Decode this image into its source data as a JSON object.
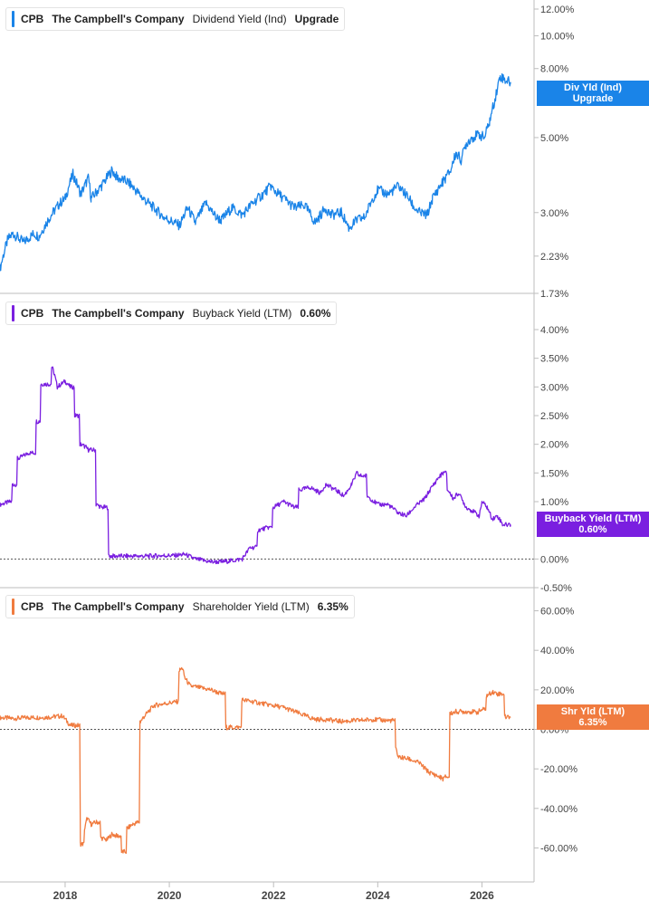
{
  "colors": {
    "dividend": "#1a84e8",
    "buyback": "#7a1fe0",
    "shareholder": "#f07b3f",
    "axis": "#bdbdbd",
    "text": "#444444"
  },
  "panels": [
    {
      "ticker": "CPB",
      "company": "The Campbell's Company",
      "metric": "Dividend Yield (Ind)",
      "value": "Upgrade",
      "tag_line1": "Div Yld (Ind)",
      "tag_line2": "Upgrade"
    },
    {
      "ticker": "CPB",
      "company": "The Campbell's Company",
      "metric": "Buyback Yield (LTM)",
      "value": "0.60%",
      "tag_line1": "Buyback Yield (LTM)",
      "tag_line2": "0.60%"
    },
    {
      "ticker": "CPB",
      "company": "The Campbell's Company",
      "metric": "Shareholder Yield (LTM)",
      "value": "6.35%",
      "tag_line1": "Shr Yld (LTM)",
      "tag_line2": "6.35%"
    }
  ],
  "chart_data": [
    {
      "type": "line",
      "scale": "log",
      "ylim": [
        1.73,
        12.0
      ],
      "ticks": [
        "12.00%",
        "10.00%",
        "8.00%",
        "5.00%",
        "3.00%",
        "2.23%",
        "1.73%"
      ],
      "series": [
        {
          "name": "Dividend Yield (Ind)",
          "x": [
            2016.75,
            2016.9,
            2017.0,
            2017.2,
            2017.4,
            2017.5,
            2017.7,
            2017.9,
            2018.0,
            2018.15,
            2018.3,
            2018.45,
            2018.5,
            2018.7,
            2018.9,
            2019.0,
            2019.2,
            2019.5,
            2019.7,
            2019.9,
            2020.0,
            2020.2,
            2020.35,
            2020.5,
            2020.7,
            2020.9,
            2021.0,
            2021.2,
            2021.4,
            2021.6,
            2021.8,
            2021.95,
            2022.0,
            2022.2,
            2022.4,
            2022.6,
            2022.8,
            2022.9,
            2023.0,
            2023.1,
            2023.3,
            2023.45,
            2023.6,
            2023.75,
            2023.9,
            2024.0,
            2024.2,
            2024.4,
            2024.6,
            2024.7,
            2024.8,
            2024.95,
            2025.05,
            2025.2,
            2025.4,
            2025.5,
            2025.6,
            2025.7,
            2025.8,
            2025.95,
            2026.05,
            2026.15,
            2026.25,
            2026.35,
            2026.45,
            2026.55
          ],
          "y": [
            2.05,
            2.5,
            2.6,
            2.45,
            2.6,
            2.55,
            2.9,
            3.2,
            3.3,
            3.9,
            3.4,
            3.8,
            3.3,
            3.6,
            4.0,
            3.8,
            3.7,
            3.3,
            3.1,
            2.9,
            2.85,
            2.75,
            3.1,
            2.8,
            3.2,
            2.9,
            2.85,
            3.1,
            2.95,
            3.2,
            3.4,
            3.6,
            3.5,
            3.3,
            3.1,
            3.15,
            2.8,
            2.95,
            3.1,
            2.95,
            3.0,
            2.7,
            2.85,
            2.9,
            3.3,
            3.5,
            3.4,
            3.6,
            3.3,
            3.1,
            3.0,
            2.95,
            3.3,
            3.6,
            4.0,
            4.5,
            4.3,
            4.8,
            5.0,
            5.1,
            5.0,
            5.6,
            6.5,
            7.6,
            7.4,
            7.3
          ]
        }
      ]
    },
    {
      "type": "line",
      "ylim": [
        -0.5,
        4.0
      ],
      "ticks": [
        "4.00%",
        "3.50%",
        "3.00%",
        "2.50%",
        "2.00%",
        "1.50%",
        "1.00%",
        "0.00%",
        "-0.50%"
      ],
      "series": [
        {
          "name": "Buyback Yield (LTM)",
          "x": [
            2016.75,
            2016.95,
            2017.0,
            2017.1,
            2017.3,
            2017.45,
            2017.55,
            2017.75,
            2017.8,
            2017.85,
            2018.0,
            2018.1,
            2018.2,
            2018.3,
            2018.4,
            2018.45,
            2018.6,
            2018.7,
            2018.75,
            2018.85,
            2018.95,
            2019.2,
            2019.6,
            2019.9,
            2020.1,
            2020.3,
            2020.5,
            2020.8,
            2021.0,
            2021.2,
            2021.4,
            2021.55,
            2021.7,
            2021.9,
            2022.0,
            2022.2,
            2022.4,
            2022.5,
            2022.7,
            2022.9,
            2023.0,
            2023.2,
            2023.35,
            2023.5,
            2023.6,
            2023.65,
            2023.8,
            2024.0,
            2024.2,
            2024.4,
            2024.55,
            2024.7,
            2024.9,
            2025.0,
            2025.15,
            2025.25,
            2025.35,
            2025.45,
            2025.55,
            2025.7,
            2025.8,
            2025.95,
            2026.0,
            2026.1,
            2026.2,
            2026.3,
            2026.4,
            2026.55
          ],
          "y": [
            0.95,
            1.0,
            1.3,
            1.75,
            1.85,
            2.4,
            3.05,
            3.35,
            3.2,
            3.0,
            3.1,
            3.0,
            2.5,
            2.0,
            1.95,
            1.9,
            0.95,
            0.9,
            0.9,
            0.05,
            0.05,
            0.05,
            0.05,
            0.06,
            0.06,
            0.08,
            0.0,
            -0.05,
            -0.05,
            -0.03,
            0.0,
            0.2,
            0.5,
            0.55,
            0.9,
            1.0,
            0.9,
            1.2,
            1.25,
            1.15,
            1.3,
            1.2,
            1.1,
            1.3,
            1.5,
            1.45,
            1.1,
            0.95,
            0.95,
            0.8,
            0.75,
            0.9,
            1.05,
            1.2,
            1.4,
            1.5,
            1.2,
            1.05,
            1.15,
            0.9,
            0.85,
            0.75,
            1.0,
            0.9,
            0.7,
            0.75,
            0.6,
            0.6
          ]
        }
      ]
    },
    {
      "type": "line",
      "ylim": [
        -63,
        63
      ],
      "ticks": [
        "60.00%",
        "40.00%",
        "20.00%",
        "0.00%",
        "-20.00%",
        "-40.00%",
        "-60.00%"
      ],
      "series": [
        {
          "name": "Shareholder Yield (LTM)",
          "x": [
            2016.75,
            2017.0,
            2017.3,
            2017.5,
            2017.7,
            2017.95,
            2018.1,
            2018.3,
            2018.38,
            2018.42,
            2018.5,
            2018.6,
            2018.7,
            2018.8,
            2018.9,
            2019.0,
            2019.1,
            2019.2,
            2019.3,
            2019.4,
            2019.45,
            2019.5,
            2019.7,
            2019.9,
            2020.15,
            2020.2,
            2020.25,
            2020.3,
            2020.4,
            2020.6,
            2020.8,
            2021.0,
            2021.1,
            2021.2,
            2021.4,
            2021.6,
            2021.8,
            2022.0,
            2022.2,
            2022.4,
            2022.6,
            2022.8,
            2023.0,
            2023.3,
            2023.6,
            2023.9,
            2024.2,
            2024.35,
            2024.4,
            2024.6,
            2024.8,
            2024.95,
            2025.0,
            2025.1,
            2025.25,
            2025.3,
            2025.4,
            2025.5,
            2025.6,
            2025.7,
            2025.8,
            2025.9,
            2026.0,
            2026.1,
            2026.2,
            2026.3,
            2026.4,
            2026.45,
            2026.55
          ],
          "y": [
            6,
            5.5,
            6,
            6,
            6.2,
            6.8,
            2,
            -58,
            -50,
            -45,
            -48,
            -47,
            -55,
            -56,
            -53,
            -54,
            -62,
            -50,
            -48,
            -47,
            4,
            6,
            12,
            13,
            14,
            30,
            31,
            26,
            22,
            21,
            20,
            18,
            1,
            1,
            15,
            14,
            13,
            12,
            11,
            9,
            7,
            5,
            5,
            4,
            4.5,
            5,
            4.5,
            -10,
            -14,
            -15,
            -17,
            -21,
            -22,
            -23,
            -25,
            -24,
            8,
            9,
            9,
            9,
            9,
            8.5,
            10,
            17,
            19,
            18,
            18,
            6.35,
            6.35
          ]
        }
      ]
    }
  ],
  "x_axis": {
    "ticks": [
      "2018",
      "2020",
      "2022",
      "2024",
      "2026"
    ],
    "values": [
      2018,
      2020,
      2022,
      2024,
      2026
    ],
    "range": [
      2016.75,
      2027.0
    ]
  }
}
